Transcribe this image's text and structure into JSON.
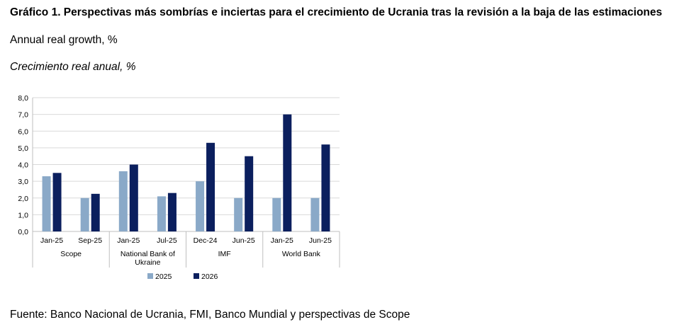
{
  "title": "Gráfico 1. Perspectivas más sombrías e inciertas para el crecimiento de Ucrania tras la revisión a la baja de las estimaciones",
  "subtitle_en": "Annual real growth, %",
  "subtitle_es": "Crecimiento real anual, %",
  "source": "Fuente: Banco Nacional de Ucrania, FMI, Banco Mundial y perspectivas de Scope",
  "colors": {
    "series_2025": "#8aa9c8",
    "series_2026": "#0b1f5e",
    "grid": "#d9d9d9",
    "axis": "#bfbfbf"
  },
  "chart_data": {
    "type": "bar",
    "categories": [
      "Jan-25",
      "Sep-25",
      "Jan-25",
      "Jul-25",
      "Dec-24",
      "Jun-25",
      "Jan-25",
      "Jun-25"
    ],
    "groups": [
      {
        "label": "Scope",
        "categories": [
          0,
          1
        ]
      },
      {
        "label": "National Bank of Ukraine",
        "categories": [
          2,
          3
        ]
      },
      {
        "label": "IMF",
        "categories": [
          4,
          5
        ]
      },
      {
        "label": "World Bank",
        "categories": [
          6,
          7
        ]
      }
    ],
    "series": [
      {
        "name": "2025",
        "color": "#8aa9c8",
        "values": [
          3.3,
          2.0,
          3.6,
          2.1,
          3.0,
          2.0,
          2.0,
          2.0
        ]
      },
      {
        "name": "2026",
        "color": "#0b1f5e",
        "values": [
          3.5,
          2.25,
          4.0,
          2.3,
          5.3,
          4.5,
          7.0,
          5.2
        ]
      }
    ],
    "ylim": [
      0,
      8
    ],
    "yticks": [
      "0,0",
      "1,0",
      "2,0",
      "3,0",
      "4,0",
      "5,0",
      "6,0",
      "7,0",
      "8,0"
    ],
    "grid": true,
    "legend_position": "bottom"
  }
}
